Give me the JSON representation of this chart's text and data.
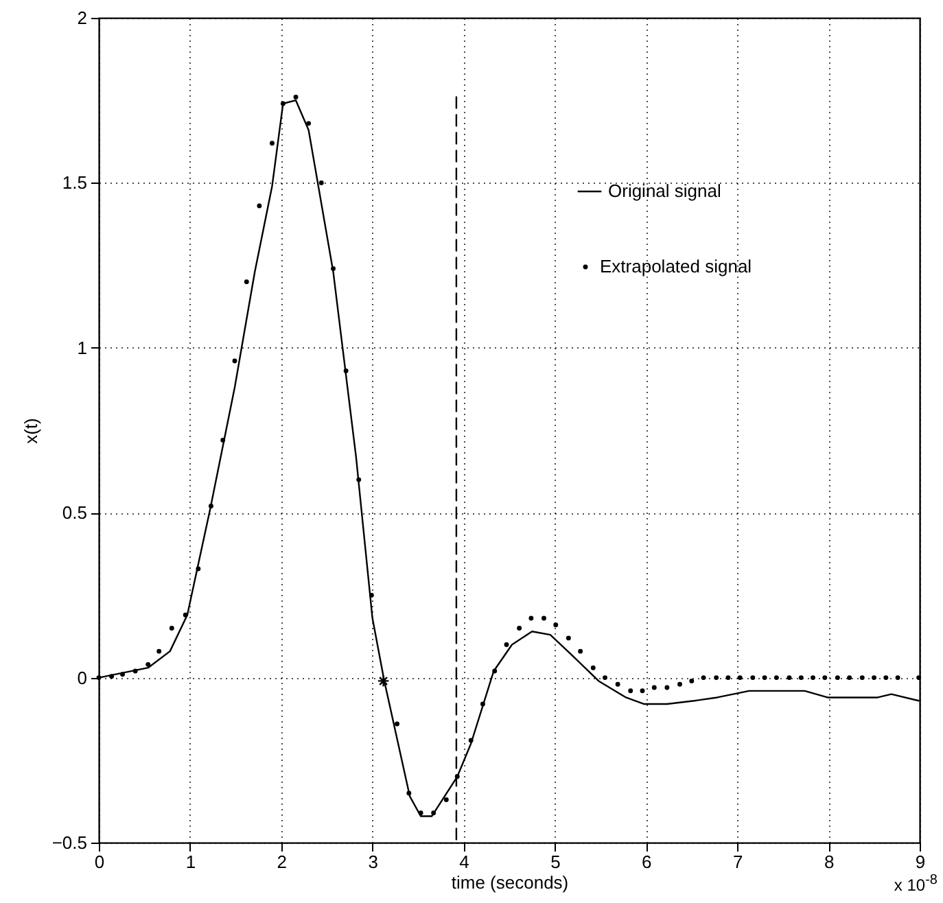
{
  "chart_data": {
    "type": "line",
    "xlabel": "time (seconds)",
    "ylabel": "x(t)",
    "xlim": [
      0,
      9
    ],
    "xticks": [
      0,
      1,
      2,
      3,
      4,
      5,
      6,
      7,
      8,
      9
    ],
    "ylim": [
      -0.5,
      2
    ],
    "yticks": [
      -0.5,
      0,
      0.5,
      1,
      1.5,
      2
    ],
    "grid": true,
    "legend": "top right",
    "annotations": [
      "x 10$^{-8}$"
    ],
    "series": [
      {
        "name": "Original signal",
        "line_style": "solid",
        "color": "#000000",
        "x": [
          0,
          0.54,
          0.78,
          0.97,
          1.22,
          1.49,
          1.71,
          1.9,
          2.02,
          2.16,
          2.3,
          2.57,
          2.82,
          3.0,
          3.13,
          3.41,
          3.53,
          3.65,
          3.93,
          4.08,
          4.33,
          4.53,
          4.75,
          4.95,
          5.18,
          5.48,
          5.78,
          5.98,
          6.23,
          6.53,
          6.78,
          7.13,
          7.74,
          7.99,
          8.29,
          8.54,
          8.69,
          8.99
        ],
        "values": [
          0,
          0.03,
          0.08,
          0.19,
          0.51,
          0.88,
          1.23,
          1.49,
          1.74,
          1.75,
          1.66,
          1.23,
          0.67,
          0.18,
          -0.01,
          -0.36,
          -0.42,
          -0.42,
          -0.3,
          -0.2,
          0.02,
          0.1,
          0.14,
          0.13,
          0.07,
          -0.01,
          -0.06,
          -0.08,
          -0.08,
          -0.07,
          -0.06,
          -0.04,
          -0.04,
          -0.06,
          -0.06,
          -0.06,
          -0.05,
          -0.07
        ]
      },
      {
        "name": "Extrapolated signal",
        "type": "scatter",
        "marker": "circle",
        "color": "#000000",
        "x": [
          0,
          0.14,
          0.26,
          0.4,
          0.54,
          0.66,
          0.8,
          0.95,
          1.09,
          1.23,
          1.36,
          1.49,
          1.62,
          1.76,
          1.9,
          2.02,
          2.16,
          2.3,
          2.44,
          2.57,
          2.71,
          2.85,
          2.99,
          3.27,
          3.4,
          3.53,
          3.67,
          3.81,
          3.93,
          4.08,
          4.21,
          4.34,
          4.47,
          4.61,
          4.74,
          4.88,
          5.01,
          5.15,
          5.28,
          5.42,
          5.55,
          5.69,
          5.83,
          5.96,
          6.09,
          6.23,
          6.37,
          6.5,
          6.63,
          6.77,
          6.9,
          7.03,
          7.17,
          7.3,
          7.43,
          7.57,
          7.7,
          7.83,
          7.96,
          8.1,
          8.23,
          8.37,
          8.5,
          8.63,
          8.76,
          8.99
        ],
        "values": [
          0,
          0.004,
          0.01,
          0.02,
          0.04,
          0.08,
          0.15,
          0.19,
          0.33,
          0.52,
          0.72,
          0.96,
          1.2,
          1.43,
          1.62,
          1.74,
          1.76,
          1.68,
          1.5,
          1.24,
          0.93,
          0.6,
          0.25,
          -0.14,
          -0.35,
          -0.41,
          -0.41,
          -0.37,
          -0.3,
          -0.19,
          -0.08,
          0.02,
          0.1,
          0.15,
          0.18,
          0.18,
          0.16,
          0.12,
          0.08,
          0.03,
          0,
          -0.02,
          -0.04,
          -0.04,
          -0.03,
          -0.03,
          -0.02,
          -0.01,
          0,
          0,
          0,
          0,
          0,
          0,
          0,
          0,
          0,
          0,
          0,
          0,
          0,
          0,
          0,
          0,
          0,
          0
        ]
      },
      {
        "type": "line",
        "line_style": "dashed",
        "color": "#000000",
        "x": [
          3.92,
          3.92
        ],
        "values": [
          1.76,
          -0.5
        ]
      },
      {
        "type": "scatter",
        "marker": "cross",
        "color": "#000000",
        "x": [
          3.12
        ],
        "values": [
          -0.01
        ]
      }
    ]
  }
}
